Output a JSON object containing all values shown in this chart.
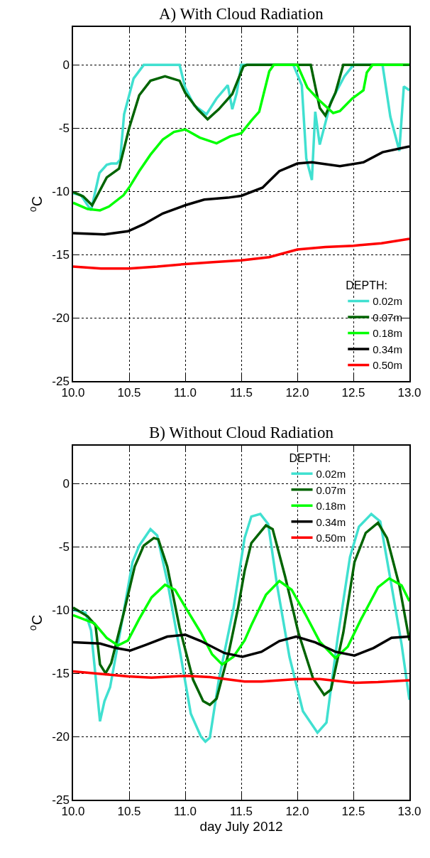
{
  "chart_data": [
    {
      "type": "line",
      "title": "A) With Cloud Radiation",
      "ylabel": "$^{o}$C",
      "legend_title": "DEPTH:",
      "legend": "bottom right",
      "grid": true,
      "line_style": "solid",
      "xlim": [
        10.0,
        13.0
      ],
      "xticks": [
        {
          "value": 10.0,
          "label": "10.0"
        },
        {
          "value": 10.5,
          "label": "10.5"
        },
        {
          "value": 11.0,
          "label": "11.0"
        },
        {
          "value": 11.5,
          "label": "11.5"
        },
        {
          "value": 12.0,
          "label": "12.0"
        },
        {
          "value": 12.5,
          "label": "12.5"
        },
        {
          "value": 13.0,
          "label": "13.0"
        }
      ],
      "ylim": [
        -25,
        3
      ],
      "yticks": [
        -25,
        -20,
        -15,
        -10,
        -5,
        0
      ],
      "series": [
        {
          "name": "0.02m",
          "color": "#40e0d0",
          "x": [
            10.0,
            10.07,
            10.16,
            10.235,
            10.3,
            10.34,
            10.39,
            10.42,
            10.455,
            10.54,
            10.63,
            10.95,
            11.0,
            11.08,
            11.19,
            11.28,
            11.38,
            11.42,
            11.46,
            11.5,
            11.965,
            12.04,
            12.08,
            12.13,
            12.16,
            12.2,
            12.3,
            12.42,
            12.5,
            12.76,
            12.83,
            12.91,
            12.95,
            13.0
          ],
          "values": [
            -10.15,
            -10.3,
            -11.5,
            -8.55,
            -7.9,
            -7.8,
            -7.8,
            -7.5,
            -3.9,
            -1.07,
            0,
            0,
            -1.8,
            -3.2,
            -3.9,
            -2.65,
            -1.6,
            -3.5,
            -2.2,
            0,
            0,
            -1.6,
            -7.4,
            -9.1,
            -3.7,
            -6.3,
            -2.9,
            -0.9,
            0,
            0,
            -4.1,
            -6.8,
            -1.7,
            -2.0
          ]
        },
        {
          "name": "0.07m",
          "color": "#006400",
          "x": [
            10.0,
            10.09,
            10.17,
            10.3,
            10.41,
            10.5,
            10.59,
            10.69,
            10.82,
            10.95,
            11.0,
            11.11,
            11.2,
            11.3,
            11.42,
            11.52,
            11.55,
            12.12,
            12.2,
            12.25,
            12.34,
            12.41,
            13.0
          ],
          "values": [
            -10.05,
            -10.4,
            -11.1,
            -8.9,
            -8.2,
            -5.0,
            -2.4,
            -1.25,
            -0.9,
            -1.25,
            -2.2,
            -3.5,
            -4.3,
            -3.5,
            -2.3,
            -0.1,
            0,
            0,
            -3.4,
            -4.0,
            -2.2,
            0,
            0
          ]
        },
        {
          "name": "0.18m",
          "color": "#00ff00",
          "x": [
            10.0,
            10.13,
            10.24,
            10.32,
            10.45,
            10.5,
            10.59,
            10.69,
            10.8,
            10.9,
            11.0,
            11.13,
            11.28,
            11.4,
            11.5,
            11.59,
            11.66,
            11.75,
            11.79,
            12.0,
            12.09,
            12.19,
            12.32,
            12.38,
            12.49,
            12.59,
            12.62,
            12.67,
            13.0
          ],
          "values": [
            -10.9,
            -11.4,
            -11.5,
            -11.2,
            -10.3,
            -9.7,
            -8.4,
            -7.1,
            -5.9,
            -5.3,
            -5.1,
            -5.75,
            -6.2,
            -5.65,
            -5.4,
            -4.4,
            -3.7,
            -0.5,
            0,
            0,
            -1.8,
            -2.75,
            -3.8,
            -3.65,
            -2.65,
            -2.0,
            -0.6,
            0,
            0
          ]
        },
        {
          "name": "0.34m",
          "color": "#000000",
          "x": [
            10.0,
            10.28,
            10.49,
            10.63,
            10.8,
            11.0,
            11.17,
            11.38,
            11.5,
            11.69,
            11.84,
            12.0,
            12.13,
            12.38,
            12.59,
            12.76,
            13.0
          ],
          "values": [
            -13.3,
            -13.4,
            -13.15,
            -12.6,
            -11.75,
            -11.1,
            -10.65,
            -10.5,
            -10.35,
            -9.7,
            -8.4,
            -7.8,
            -7.7,
            -8.0,
            -7.7,
            -6.9,
            -6.45
          ]
        },
        {
          "name": "0.50m",
          "color": "#ff0000",
          "x": [
            10.0,
            10.25,
            10.5,
            10.75,
            11.0,
            11.25,
            11.5,
            11.75,
            12.0,
            12.25,
            12.5,
            12.75,
            13.0
          ],
          "values": [
            -15.95,
            -16.1,
            -16.1,
            -15.95,
            -15.75,
            -15.6,
            -15.45,
            -15.2,
            -14.6,
            -14.4,
            -14.3,
            -14.1,
            -13.75
          ]
        }
      ]
    },
    {
      "type": "line",
      "title": "B) Without Cloud Radiation",
      "xlabel": "day July 2012",
      "ylabel": "$^{o}$C",
      "legend_title": "DEPTH:",
      "legend": "top",
      "grid": true,
      "line_style": "solid",
      "xlim": [
        10.0,
        13.0
      ],
      "xticks": [
        {
          "value": 10.0,
          "label": "10.0"
        },
        {
          "value": 10.5,
          "label": "10.5"
        },
        {
          "value": 11.0,
          "label": "11.0"
        },
        {
          "value": 11.5,
          "label": "11.5"
        },
        {
          "value": 12.0,
          "label": "12.0"
        },
        {
          "value": 12.5,
          "label": "12.5"
        },
        {
          "value": 13.0,
          "label": "13.0"
        }
      ],
      "ylim": [
        -25,
        3
      ],
      "yticks": [
        -25,
        -20,
        -15,
        -10,
        -5,
        0
      ],
      "series": [
        {
          "name": "0.02m",
          "color": "#40e0d0",
          "x": [
            10.0,
            10.11,
            10.16,
            10.24,
            10.28,
            10.33,
            10.4,
            10.53,
            10.59,
            10.69,
            10.75,
            10.84,
            10.95,
            11.05,
            11.14,
            11.18,
            11.22,
            11.3,
            11.43,
            11.53,
            11.59,
            11.67,
            11.74,
            11.82,
            11.93,
            12.05,
            12.18,
            12.26,
            12.36,
            12.47,
            12.55,
            12.66,
            12.74,
            12.84,
            12.93,
            13.0
          ],
          "values": [
            -10.0,
            -10.2,
            -11.6,
            -18.8,
            -17.2,
            -16.1,
            -12.7,
            -6.2,
            -4.9,
            -3.6,
            -4.1,
            -7.7,
            -13.1,
            -18.2,
            -20.0,
            -20.4,
            -20.1,
            -15.5,
            -9.9,
            -4.3,
            -2.6,
            -2.4,
            -3.2,
            -8.05,
            -13.7,
            -18.0,
            -19.7,
            -18.9,
            -12.2,
            -5.8,
            -3.4,
            -2.4,
            -3.0,
            -8.05,
            -12.7,
            -17.1
          ]
        },
        {
          "name": "0.07m",
          "color": "#006400",
          "x": [
            10.0,
            10.13,
            10.2,
            10.24,
            10.29,
            10.34,
            10.45,
            10.55,
            10.63,
            10.72,
            10.76,
            10.84,
            10.95,
            11.07,
            11.16,
            11.22,
            11.28,
            11.39,
            11.47,
            11.53,
            11.59,
            11.72,
            11.78,
            11.89,
            12.01,
            12.14,
            12.24,
            12.3,
            12.41,
            12.51,
            12.61,
            12.72,
            12.8,
            12.91,
            13.0
          ],
          "values": [
            -9.8,
            -10.5,
            -11.2,
            -14.3,
            -15.0,
            -14.2,
            -10.3,
            -6.55,
            -4.9,
            -4.3,
            -4.4,
            -6.55,
            -11.4,
            -15.5,
            -17.2,
            -17.5,
            -17.0,
            -13.3,
            -9.9,
            -6.9,
            -4.7,
            -3.3,
            -3.6,
            -7.3,
            -11.8,
            -15.4,
            -16.7,
            -16.3,
            -11.8,
            -6.2,
            -3.9,
            -3.1,
            -4.3,
            -8.05,
            -12.4
          ]
        },
        {
          "name": "0.18m",
          "color": "#00ff00",
          "x": [
            10.0,
            10.19,
            10.3,
            10.4,
            10.49,
            10.59,
            10.7,
            10.82,
            10.91,
            11.01,
            11.14,
            11.24,
            11.33,
            11.43,
            11.53,
            11.59,
            11.72,
            11.84,
            11.95,
            12.07,
            12.2,
            12.34,
            12.45,
            12.57,
            12.72,
            12.82,
            12.93,
            13.0
          ],
          "values": [
            -10.4,
            -11.05,
            -12.2,
            -12.8,
            -12.4,
            -10.7,
            -9.0,
            -8.0,
            -8.4,
            -9.9,
            -11.8,
            -13.5,
            -14.3,
            -13.7,
            -12.4,
            -11.2,
            -8.8,
            -7.7,
            -8.4,
            -10.3,
            -12.5,
            -13.8,
            -12.9,
            -10.7,
            -8.2,
            -7.5,
            -8.05,
            -9.3
          ]
        },
        {
          "name": "0.34m",
          "color": "#000000",
          "x": [
            10.0,
            10.24,
            10.38,
            10.51,
            10.65,
            10.84,
            11.0,
            11.14,
            11.35,
            11.51,
            11.68,
            11.84,
            11.99,
            12.16,
            12.34,
            12.51,
            12.68,
            12.84,
            13.0
          ],
          "values": [
            -12.55,
            -12.65,
            -13.0,
            -13.2,
            -12.75,
            -12.1,
            -11.95,
            -12.45,
            -13.4,
            -13.7,
            -13.3,
            -12.45,
            -12.1,
            -12.55,
            -13.3,
            -13.6,
            -13.0,
            -12.2,
            -12.1
          ]
        },
        {
          "name": "0.50m",
          "color": "#ff0000",
          "x": [
            10.0,
            10.49,
            10.7,
            11.01,
            11.22,
            11.53,
            11.68,
            12.01,
            12.2,
            12.51,
            12.72,
            13.0
          ],
          "values": [
            -14.85,
            -15.25,
            -15.35,
            -15.2,
            -15.3,
            -15.65,
            -15.65,
            -15.45,
            -15.45,
            -15.75,
            -15.7,
            -15.55
          ]
        }
      ]
    }
  ]
}
